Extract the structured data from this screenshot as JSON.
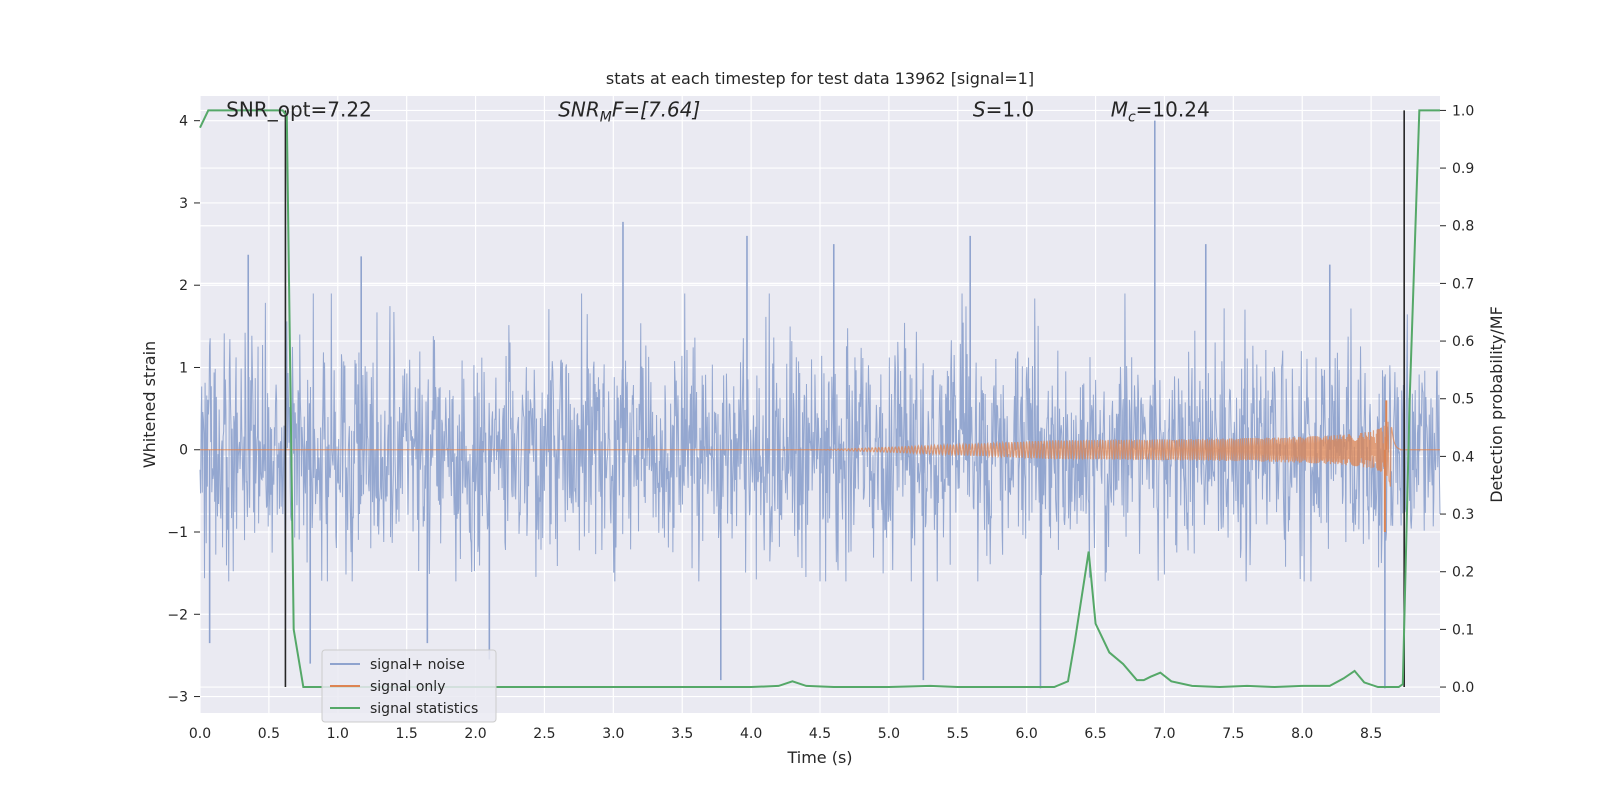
{
  "chart_data": {
    "type": "line",
    "title": "stats at each timestep for test data 13962 [signal=1]",
    "xlabel": "Time (s)",
    "ylabel_left": "Whitened strain",
    "ylabel_right": "Detection probability/MF",
    "xlim": [
      0.0,
      9.0
    ],
    "ylim_left": [
      -3.2,
      4.3
    ],
    "ylim_right": [
      -0.045,
      1.025
    ],
    "x_ticks": [
      "0.0",
      "0.5",
      "1.0",
      "1.5",
      "2.0",
      "2.5",
      "3.0",
      "3.5",
      "4.0",
      "4.5",
      "5.0",
      "5.5",
      "6.0",
      "6.5",
      "7.0",
      "7.5",
      "8.0",
      "8.5"
    ],
    "y_ticks_left": [
      -3,
      -2,
      -1,
      0,
      1,
      2,
      3,
      4
    ],
    "y_ticks_right": [
      "0.0",
      "0.1",
      "0.2",
      "0.3",
      "0.4",
      "0.5",
      "0.6",
      "0.7",
      "0.8",
      "0.9",
      "1.0"
    ],
    "grid": true,
    "legend_position": "lower-left",
    "annotations": [
      {
        "id": "snr-opt",
        "text": "SNR_opt=7.22"
      },
      {
        "id": "snr-mf",
        "text": "SNR_MF=[7.64]",
        "base": "SNR",
        "sub": "M",
        "tail": "F=[7.64]"
      },
      {
        "id": "s-value",
        "text": "S=1.0",
        "base": "S",
        "tail": "=1.0"
      },
      {
        "id": "mc-value",
        "text": "M_c=10.24",
        "base": "M",
        "sub": "c",
        "tail": "=10.24"
      }
    ],
    "series": [
      {
        "name": "signal+ noise",
        "color": "#8fa3ce",
        "axis": "left",
        "kind": "noise",
        "amplitude_std": 0.65,
        "dense_bounds": [
          -1.6,
          1.9
        ],
        "spikes": [
          {
            "x": 0.35,
            "y": 2.37
          },
          {
            "x": 0.07,
            "y": -2.35
          },
          {
            "x": 0.8,
            "y": -2.6
          },
          {
            "x": 1.17,
            "y": 2.35
          },
          {
            "x": 1.65,
            "y": -2.35
          },
          {
            "x": 2.1,
            "y": -2.55
          },
          {
            "x": 3.07,
            "y": 2.77
          },
          {
            "x": 3.78,
            "y": -2.8
          },
          {
            "x": 3.97,
            "y": 2.6
          },
          {
            "x": 4.6,
            "y": 2.5
          },
          {
            "x": 5.25,
            "y": -2.8
          },
          {
            "x": 5.59,
            "y": 2.6
          },
          {
            "x": 6.1,
            "y": -2.9
          },
          {
            "x": 6.93,
            "y": 4.0
          },
          {
            "x": 7.3,
            "y": 2.5
          },
          {
            "x": 8.2,
            "y": 2.25
          },
          {
            "x": 8.6,
            "y": -2.9
          }
        ]
      },
      {
        "name": "signal only",
        "color": "#dd8452",
        "axis": "left",
        "kind": "chirp",
        "onset": 4.5,
        "peak_time": 8.65,
        "peak_amplitude": 0.6,
        "min_amplitude": -1.0
      },
      {
        "name": "signal statistics",
        "color": "#55a868",
        "axis": "right",
        "kind": "line",
        "x": [
          0.0,
          0.06,
          0.12,
          0.2,
          0.3,
          0.4,
          0.5,
          0.6,
          0.63,
          0.68,
          0.75,
          0.85,
          1.0,
          2.0,
          3.0,
          4.0,
          4.2,
          4.3,
          4.4,
          4.6,
          5.0,
          5.3,
          5.5,
          6.0,
          6.2,
          6.3,
          6.35,
          6.45,
          6.5,
          6.6,
          6.7,
          6.8,
          6.85,
          6.9,
          6.97,
          7.05,
          7.2,
          7.4,
          7.6,
          7.8,
          8.0,
          8.2,
          8.3,
          8.38,
          8.45,
          8.55,
          8.7,
          8.73,
          8.78,
          8.85,
          8.93,
          9.0
        ],
        "y": [
          0.97,
          1.0,
          1.0,
          1.0,
          1.0,
          1.0,
          1.0,
          1.0,
          0.99,
          0.1,
          0.0,
          0.0,
          0.0,
          0.0,
          0.0,
          0.0,
          0.002,
          0.01,
          0.002,
          0.0,
          0.0,
          0.002,
          0.0,
          0.0,
          0.0,
          0.01,
          0.08,
          0.235,
          0.11,
          0.06,
          0.04,
          0.012,
          0.012,
          0.018,
          0.025,
          0.01,
          0.002,
          0.0,
          0.002,
          0.0,
          0.002,
          0.002,
          0.015,
          0.028,
          0.008,
          0.0,
          0.0,
          0.005,
          0.5,
          1.0,
          1.0,
          1.0
        ]
      }
    ],
    "vertical_lines": [
      {
        "x": 0.62,
        "y_top": 1.0,
        "y_bottom": 0.0,
        "color": "#262626",
        "axis": "right"
      },
      {
        "x": 8.74,
        "y_top": 1.0,
        "y_bottom": 0.0,
        "color": "#262626",
        "axis": "right"
      }
    ]
  }
}
